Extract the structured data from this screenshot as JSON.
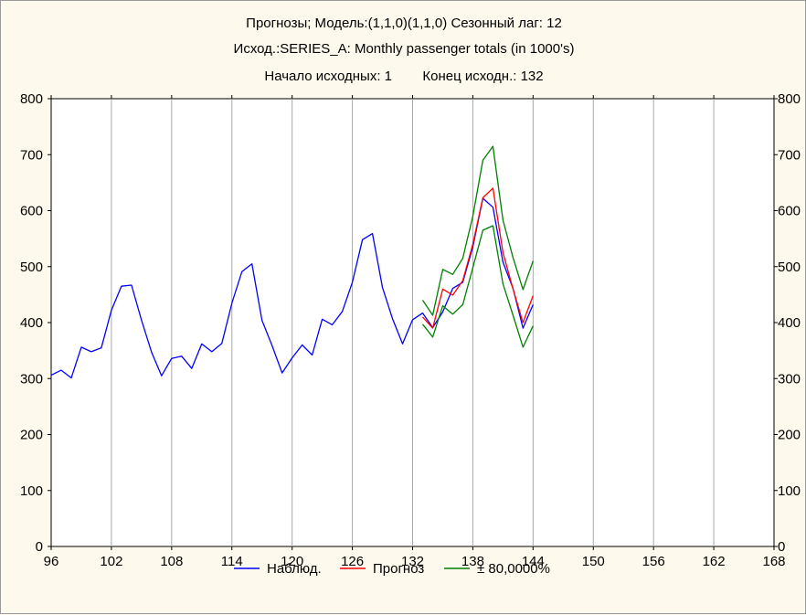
{
  "colors": {
    "background": "#fdf9ec",
    "plot_background": "#ffffff",
    "grid": "#a8a8a8",
    "observed": "#0000ff",
    "forecast": "#ff0000",
    "interval": "#008000"
  },
  "chart_data": {
    "type": "line",
    "title": "Прогнозы; Модель:(1,1,0)(1,1,0) Сезонный лаг: 12",
    "subtitle": "Исход.:SERIES_A: Monthly passenger totals (in 1000's)",
    "start_label": "Начало исходных: 1",
    "end_label": "Конец исходн.: 132",
    "xlabel": "",
    "ylabel": "",
    "xlim": [
      96,
      168
    ],
    "ylim": [
      0,
      800
    ],
    "x_ticks": [
      96,
      102,
      108,
      114,
      120,
      126,
      132,
      138,
      144,
      150,
      156,
      162,
      168
    ],
    "y_ticks": [
      0,
      100,
      200,
      300,
      400,
      500,
      600,
      700,
      800
    ],
    "grid": "vertical",
    "legend_position": "bottom",
    "series": [
      {
        "name": "Наблюд.",
        "color": "#0000ff",
        "x": [
          96,
          97,
          98,
          99,
          100,
          101,
          102,
          103,
          104,
          105,
          106,
          107,
          108,
          109,
          110,
          111,
          112,
          113,
          114,
          115,
          116,
          117,
          118,
          119,
          120,
          121,
          122,
          123,
          124,
          125,
          126,
          127,
          128,
          129,
          130,
          131,
          132,
          133,
          134,
          135,
          136,
          137,
          138,
          139,
          140,
          141,
          142,
          143,
          144
        ],
        "y": [
          306,
          315,
          301,
          356,
          348,
          355,
          422,
          465,
          467,
          404,
          347,
          305,
          336,
          340,
          318,
          362,
          348,
          363,
          435,
          491,
          505,
          404,
          359,
          310,
          337,
          360,
          342,
          406,
          396,
          420,
          472,
          548,
          559,
          463,
          407,
          362,
          405,
          417,
          391,
          419,
          461,
          472,
          535,
          622,
          606,
          508,
          461,
          390,
          432
        ]
      },
      {
        "name": "Прогноз",
        "color": "#ff0000",
        "x": [
          133,
          134,
          135,
          136,
          137,
          138,
          139,
          140,
          141,
          142,
          143,
          144
        ],
        "y": [
          410,
          390,
          460,
          449,
          475,
          540,
          623,
          640,
          525,
          460,
          400,
          448
        ]
      },
      {
        "name": "± 80,0000%",
        "color": "#008000",
        "x": [
          133,
          134,
          135,
          136,
          137,
          138,
          139,
          140,
          141,
          142,
          143,
          144
        ],
        "y": [
          440,
          413,
          495,
          486,
          515,
          590,
          690,
          715,
          583,
          516,
          459,
          510
        ]
      },
      {
        "name": "",
        "color": "#008000",
        "x": [
          133,
          134,
          135,
          136,
          137,
          138,
          139,
          140,
          141,
          142,
          143,
          144
        ],
        "y": [
          397,
          374,
          430,
          415,
          432,
          498,
          565,
          573,
          469,
          413,
          356,
          394
        ]
      }
    ]
  }
}
